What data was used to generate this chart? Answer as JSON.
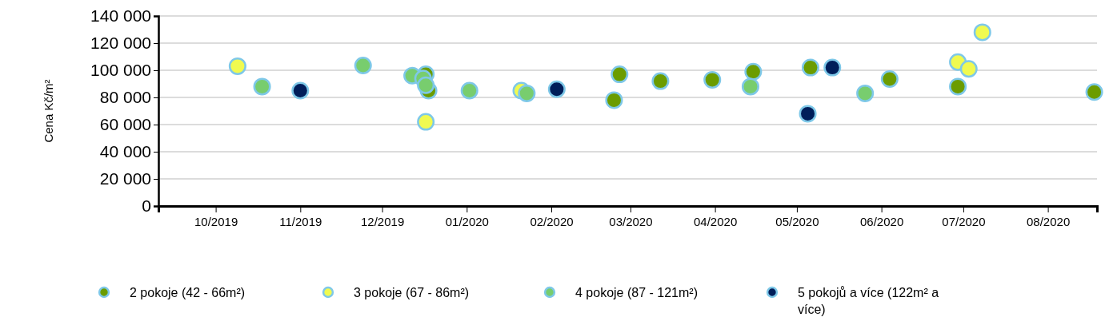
{
  "chart_data": {
    "type": "scatter",
    "ylabel": "Cena Kč/m²",
    "xlim": [
      "2019-09-10",
      "2020-08-19"
    ],
    "xticks": [
      {
        "value": "2019-10-01",
        "label": "10/2019"
      },
      {
        "value": "2019-11-01",
        "label": "11/2019"
      },
      {
        "value": "2019-12-01",
        "label": "12/2019"
      },
      {
        "value": "2020-01-01",
        "label": "01/2020"
      },
      {
        "value": "2020-02-01",
        "label": "02/2020"
      },
      {
        "value": "2020-03-01",
        "label": "03/2020"
      },
      {
        "value": "2020-04-01",
        "label": "04/2020"
      },
      {
        "value": "2020-05-01",
        "label": "05/2020"
      },
      {
        "value": "2020-06-01",
        "label": "06/2020"
      },
      {
        "value": "2020-07-01",
        "label": "07/2020"
      },
      {
        "value": "2020-08-01",
        "label": "08/2020"
      }
    ],
    "ylim": [
      0,
      140000
    ],
    "yticks": [
      0,
      {
        "value": 20000,
        "label": "20 000"
      },
      {
        "value": 40000,
        "label": "40 000"
      },
      {
        "value": 60000,
        "label": "60 000"
      },
      {
        "value": 80000,
        "label": "80 000"
      },
      {
        "value": 100000,
        "label": "100 000"
      },
      {
        "value": 120000,
        "label": "120 000"
      },
      {
        "value": 140000,
        "label": "140 000"
      }
    ],
    "grid": "y",
    "legend": "bottom",
    "marker": "circle",
    "series": [
      {
        "name": "2 pokoje (42 - 66m²)",
        "color": "#6b9c00",
        "x": [
          "2019-12-17",
          "2019-12-18",
          "2020-02-24",
          "2020-02-26",
          "2020-03-12",
          "2020-03-31",
          "2020-04-15",
          "2020-05-06",
          "2020-06-04",
          "2020-06-29",
          "2020-08-18"
        ],
        "values": [
          97000,
          85000,
          78000,
          97000,
          92000,
          93000,
          99000,
          102000,
          93500,
          88000,
          84000
        ]
      },
      {
        "name": "3 pokoje (67 - 86m²)",
        "color": "#f0fa50",
        "x": [
          "2019-10-09",
          "2019-12-17",
          "2020-01-21",
          "2020-06-29",
          "2020-07-03",
          "2020-07-08"
        ],
        "values": [
          103000,
          62000,
          85000,
          106000,
          101000,
          128000
        ]
      },
      {
        "name": "4 pokoje (87 - 121m²)",
        "color": "#78cd6e",
        "x": [
          "2019-10-18",
          "2019-11-24",
          "2019-12-12",
          "2019-12-16",
          "2019-12-17",
          "2020-01-02",
          "2020-01-23",
          "2020-04-14",
          "2020-05-26"
        ],
        "values": [
          88000,
          103500,
          96000,
          94000,
          89000,
          85000,
          83000,
          88000,
          83000
        ]
      },
      {
        "name": "5 pokojů a více (122m² a více)",
        "color": "#001e5a",
        "x": [
          "2019-11-01",
          "2020-02-03",
          "2020-05-05",
          "2020-05-14"
        ],
        "values": [
          85000,
          86000,
          68000,
          102000
        ]
      }
    ]
  }
}
